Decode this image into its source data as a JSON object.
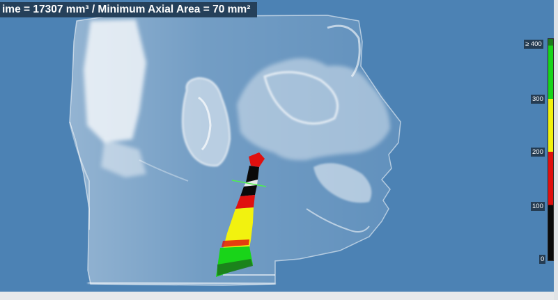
{
  "measurement_banner": "ime = 17307 mm³ / Minimum Axial Area = 70 mm²",
  "legend": {
    "ticks": [
      "≥ 400",
      "300",
      "200",
      "100",
      "0"
    ],
    "colors": {
      "top": "#1c7a1c",
      "green": "#19d419",
      "yellow": "#f2f20f",
      "red": "#e0100f",
      "black": "#0a0a0a"
    }
  },
  "viewport_background": "#4c82b4",
  "airway_colors": [
    "#e0100f",
    "#0a0a0a",
    "#f2f20f",
    "#19d419"
  ]
}
